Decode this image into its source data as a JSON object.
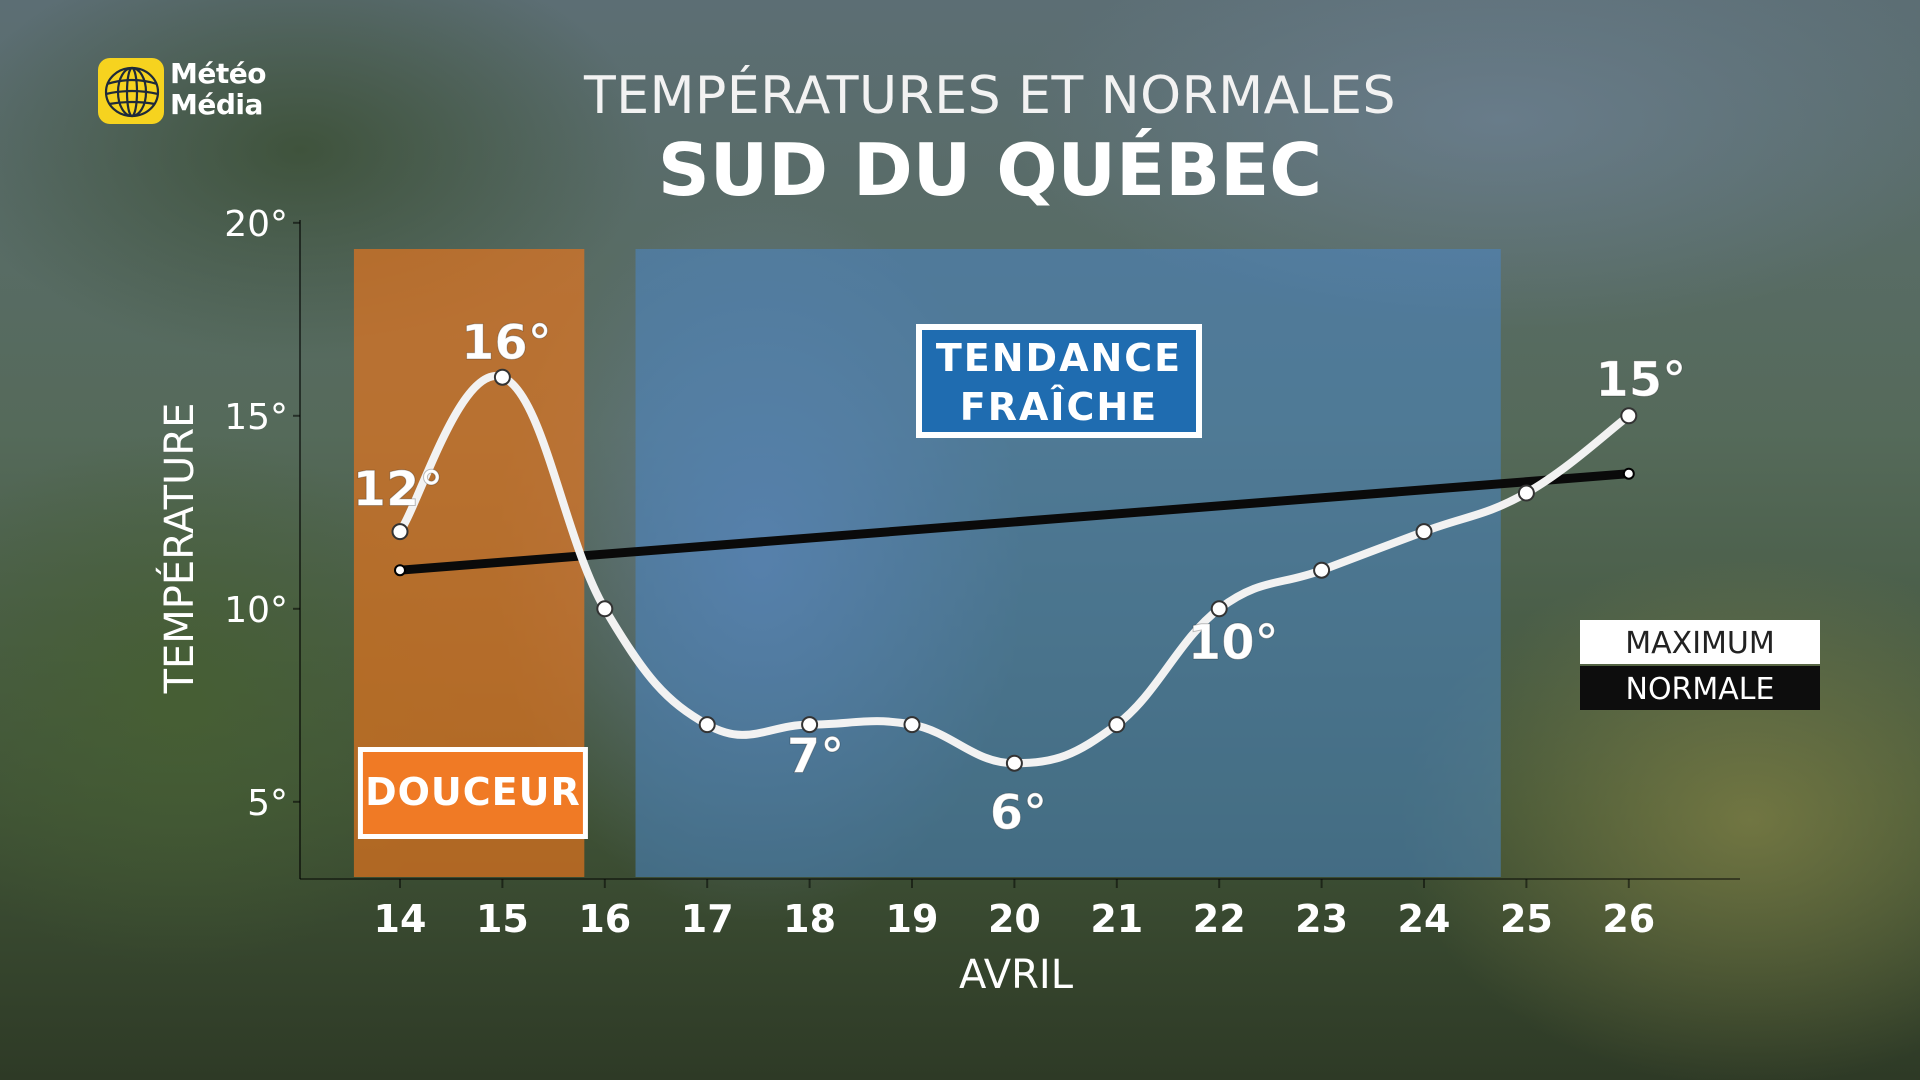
{
  "header": {
    "logo_line1": "Météo",
    "logo_line2": "Média",
    "title": "TEMPÉRATURES ET NORMALES",
    "subtitle": "SUD DU QUÉBEC"
  },
  "chart_data": {
    "type": "line",
    "x": [
      14,
      15,
      16,
      17,
      18,
      19,
      20,
      21,
      22,
      23,
      24,
      25,
      26
    ],
    "xlabel": "AVRIL",
    "ylabel": "TEMPÉRATURE",
    "ylim": [
      3,
      20
    ],
    "yticks": [
      5,
      10,
      15,
      20
    ],
    "ytick_labels": [
      "5°",
      "10°",
      "15°",
      "20°"
    ],
    "grid": false,
    "legend_position": "right",
    "series": [
      {
        "name": "MAXIMUM",
        "values": [
          12,
          16,
          10,
          7,
          7,
          7,
          6,
          7,
          10,
          11,
          12,
          13,
          15
        ],
        "color": "#f2f2f2"
      },
      {
        "name": "NORMALE",
        "values": [
          11,
          null,
          null,
          null,
          null,
          null,
          null,
          null,
          null,
          null,
          null,
          null,
          13.5
        ],
        "color": "#0a0a0a"
      }
    ],
    "point_labels": [
      {
        "x": 14,
        "text": "12°"
      },
      {
        "x": 15,
        "text": "16°"
      },
      {
        "x": 18,
        "text": "7°"
      },
      {
        "x": 20,
        "text": "6°"
      },
      {
        "x": 22,
        "text": "10°"
      },
      {
        "x": 26,
        "text": "15°"
      }
    ],
    "bands": [
      {
        "label": "DOUCEUR",
        "x_start": 13.55,
        "x_end": 15.8,
        "color": "#e8741e"
      },
      {
        "label_lines": [
          "TENDANCE",
          "FRAÎCHE"
        ],
        "x_start": 16.3,
        "x_end": 24.75,
        "color": "#4a86c6"
      }
    ]
  }
}
